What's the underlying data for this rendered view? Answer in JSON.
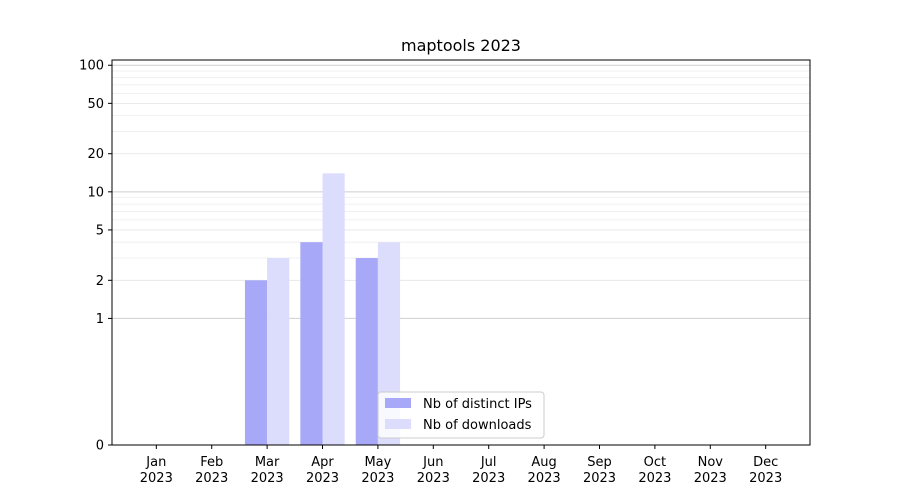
{
  "chart_data": {
    "type": "bar",
    "title": "maptools 2023",
    "xlabel": "",
    "ylabel": "",
    "yscale": "symlog",
    "ylim": [
      0,
      110
    ],
    "yticks": [
      0,
      1,
      2,
      5,
      10,
      20,
      50,
      100
    ],
    "grid": true,
    "legend_position": "lower-center",
    "categories": [
      "Jan\n2023",
      "Feb\n2023",
      "Mar\n2023",
      "Apr\n2023",
      "May\n2023",
      "Jun\n2023",
      "Jul\n2023",
      "Aug\n2023",
      "Sep\n2023",
      "Oct\n2023",
      "Nov\n2023",
      "Dec\n2023"
    ],
    "series": [
      {
        "name": "Nb of distinct IPs",
        "color": "#a8a8f8",
        "values": [
          0,
          0,
          2,
          4,
          3,
          0,
          0,
          0,
          0,
          0,
          0,
          0
        ]
      },
      {
        "name": "Nb of downloads",
        "color": "#dcdcfc",
        "values": [
          0,
          0,
          3,
          14,
          4,
          0,
          0,
          0,
          0,
          0,
          0,
          0
        ]
      }
    ]
  }
}
